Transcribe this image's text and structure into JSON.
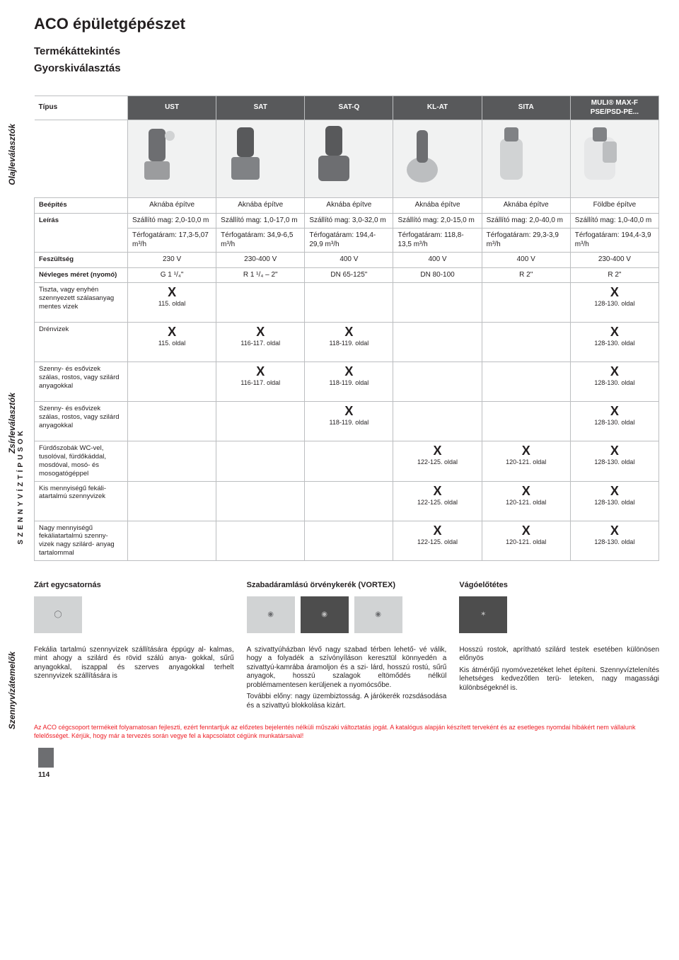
{
  "header": {
    "title": "ACO épületgépészet",
    "subtitle1": "Termékáttekintés",
    "subtitle2": "Gyorskiválasztás"
  },
  "sidebar": {
    "label1": "Olajleválasztók",
    "label2": "Zsírleválasztók",
    "label3": "Szennyvízátemelők",
    "wastewaterTypes": "SZENNYVÍZTÍPUSOK",
    "pageNumber": "114"
  },
  "columns": [
    {
      "head": "UST"
    },
    {
      "head": "SAT"
    },
    {
      "head": "SAT-Q"
    },
    {
      "head": "KL-AT"
    },
    {
      "head": "SITA"
    },
    {
      "head": "MULI® MAX-F",
      "head2": "PSE/PSD-PE..."
    }
  ],
  "rowLabels": {
    "type": "Típus",
    "install": "Beépítés",
    "desc": "Leírás",
    "voltage": "Feszültség",
    "nominal": "Névleges méret (nyomó)",
    "r1": "Tiszta, vagy enyhén szennyezett szálasanyag mentes vizek",
    "r2": "Drénvizek",
    "r3": "Szenny- és esővizek szálas, rostos, vagy szilárd anyagokkal",
    "r4": "Szenny- és esővizek szálas, rostos, vagy szilárd anyagokkal",
    "r5": "Fürdőszobák WC-vel, tusolóval, fürdőkáddal, mosdóval, mosó- és mosogatógéppel",
    "r6": "Kis mennyiségű fekáli- atartalmú szennyvizek",
    "r7": "Nagy mennyiségű fekáliatartalmú szenny- vizek nagy szilárd- anyag tartalommal"
  },
  "install": [
    "Aknába építve",
    "Aknába építve",
    "Aknába építve",
    "Aknába építve",
    "Aknába építve",
    "Földbe építve"
  ],
  "desc1": [
    "Szállító mag: 2,0-10,0 m",
    "Szállító mag: 1,0-17,0 m",
    "Szállító mag: 3,0-32,0 m",
    "Szállító mag: 2,0-15,0 m",
    "Szállító mag: 2,0-40,0 m",
    "Szállító mag: 1,0-40,0 m"
  ],
  "desc2": [
    "Térfogatáram: 17,3-5,07 m³/h",
    "Térfogatáram: 34,9-6,5 m³/h",
    "Térfogatáram: 194,4-29,9 m³/h",
    "Térfogatáram: 118,8-13,5 m³/h",
    "Térfogatáram: 29,3-3,9 m³/h",
    "Térfogatáram: 194,4-3,9 m³/h"
  ],
  "voltage": [
    "230 V",
    "230-400 V",
    "400 V",
    "400 V",
    "400 V",
    "230-400 V"
  ],
  "nominal": [
    "G 1 ¹/₄\"",
    "R 1 ¹/₄ – 2\"",
    "DN 65-125\"",
    "DN 80-100",
    "R 2\"",
    "R 2\""
  ],
  "matrix": {
    "r1": [
      "115. oldal",
      "",
      "",
      "",
      "",
      "128-130. oldal"
    ],
    "r2": [
      "115. oldal",
      "116-117. oldal",
      "118-119. oldal",
      "",
      "",
      "128-130. oldal"
    ],
    "r3": [
      "",
      "116-117. oldal",
      "118-119. oldal",
      "",
      "",
      "128-130. oldal"
    ],
    "r4": [
      "",
      "",
      "118-119. oldal",
      "",
      "",
      "128-130. oldal"
    ],
    "r5": [
      "",
      "",
      "",
      "122-125. oldal",
      "120-121. oldal",
      "128-130. oldal"
    ],
    "r6": [
      "",
      "",
      "",
      "122-125. oldal",
      "120-121. oldal",
      "128-130. oldal"
    ],
    "r7": [
      "",
      "",
      "",
      "122-125. oldal",
      "120-121. oldal",
      "128-130. oldal"
    ]
  },
  "bottom": {
    "col1": {
      "title": "Zárt egycsatornás",
      "text": "Fekália tartalmú szennyvizek szállítására éppúgy al- kalmas, mint ahogy a szilárd és rövid szálú anya- gokkal, sűrű anyagokkal, iszappal és szerves anyagokkal terhelt szennyvizek szállítására is"
    },
    "col2": {
      "title": "Szabadáramlású örvénykerék (VORTEX)",
      "text": "A szivattyúházban lévő nagy szabad térben lehető- vé válik, hogy a folyadék a szívónyíláson keresztül könnyedén a szivattyú-kamrába áramoljon és a szi- lárd, hosszú rostú, sűrű anyagok, hosszú szalagok eltömődés nélkül problémamentesen kerüljenek a nyomócsőbe.",
      "text2": "További előny: nagy üzembiztosság. A járókerék rozsdásodása és a szivattyú blokkolása kizárt."
    },
    "col3": {
      "title": "Vágóelőtétes",
      "text": "Hosszú rostok, aprítható szilárd testek esetében különösen előnyös",
      "text2": "Kis átmérőjű nyomóvezetéket lehet építeni. Szennyvíztelenítés lehetséges kedvezőtlen terü- leteken, nagy magassági különbségeknél is."
    }
  },
  "footnote": "Az ACO cégcsoport termékeit folyamatosan fejleszti, ezért fenntartjuk az előzetes bejelentés nélküli műszaki változtatás jogát. A katalógus alapján készített terveként és az esetleges nyomdai hibákért nem vállalunk felelősséget. Kérjük, hogy már a tervezés során vegye fel a kapcsolatot cégünk munkatársaival!"
}
